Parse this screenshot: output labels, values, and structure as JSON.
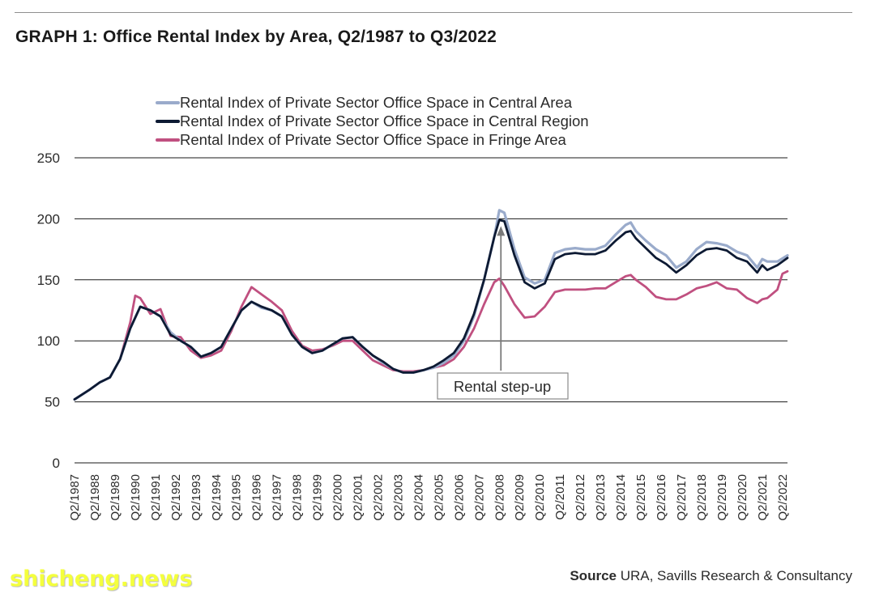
{
  "header": {
    "title": "GRAPH 1: Office Rental Index by Area, Q2/1987 to Q3/2022"
  },
  "footer": {
    "source_label": "Source",
    "source_text": "URA, Savills Research & Consultancy",
    "watermark": "shicheng.news"
  },
  "chart_data": {
    "type": "line",
    "ylim": [
      0,
      250
    ],
    "yticks": [
      0,
      50,
      100,
      150,
      200,
      250
    ],
    "xticks": [
      "Q2/1987",
      "Q2/1988",
      "Q2/1989",
      "Q2/1990",
      "Q2/1991",
      "Q2/1992",
      "Q2/1993",
      "Q2/1994",
      "Q2/1995",
      "Q2/1996",
      "Q2/1997",
      "Q2/1998",
      "Q2/1999",
      "Q2/2000",
      "Q2/2001",
      "Q2/2002",
      "Q2/2003",
      "Q2/2004",
      "Q2/2005",
      "Q2/2006",
      "Q2/2007",
      "Q2/2008",
      "Q2/2009",
      "Q2/2010",
      "Q2/2011",
      "Q2/2012",
      "Q2/2013",
      "Q2/2014",
      "Q2/2015",
      "Q2/2016",
      "Q2/2017",
      "Q2/2018",
      "Q2/2019",
      "Q2/2020",
      "Q2/2021",
      "Q2/2022"
    ],
    "x_range": [
      "Q2/1987",
      "Q3/2022"
    ],
    "grid": "horizontal",
    "legend_position": "top",
    "annotation": {
      "text": "Rental step-up",
      "x": "Q2/2008",
      "y": 200
    },
    "series": [
      {
        "name": "Rental Index of Private Sector Office Space in Central Area",
        "color": "#9aabcb",
        "points": [
          [
            1987.25,
            52
          ],
          [
            1988.0,
            60
          ],
          [
            1988.5,
            66
          ],
          [
            1989.0,
            70
          ],
          [
            1989.5,
            85
          ],
          [
            1990.0,
            110
          ],
          [
            1990.5,
            128
          ],
          [
            1991.0,
            125
          ],
          [
            1991.5,
            120
          ],
          [
            1992.0,
            107
          ],
          [
            1992.5,
            100
          ],
          [
            1993.0,
            95
          ],
          [
            1993.5,
            87
          ],
          [
            1994.0,
            90
          ],
          [
            1994.5,
            95
          ],
          [
            1995.0,
            110
          ],
          [
            1995.5,
            125
          ],
          [
            1996.0,
            132
          ],
          [
            1996.5,
            127
          ],
          [
            1997.0,
            125
          ],
          [
            1997.5,
            120
          ],
          [
            1998.0,
            105
          ],
          [
            1998.5,
            95
          ],
          [
            1999.0,
            90
          ],
          [
            1999.5,
            92
          ],
          [
            2000.0,
            97
          ],
          [
            2000.5,
            102
          ],
          [
            2001.0,
            103
          ],
          [
            2001.5,
            95
          ],
          [
            2002.0,
            88
          ],
          [
            2002.5,
            82
          ],
          [
            2003.0,
            77
          ],
          [
            2003.5,
            74
          ],
          [
            2004.0,
            74
          ],
          [
            2004.5,
            76
          ],
          [
            2005.0,
            78
          ],
          [
            2005.5,
            82
          ],
          [
            2006.0,
            88
          ],
          [
            2006.5,
            100
          ],
          [
            2007.0,
            120
          ],
          [
            2007.5,
            150
          ],
          [
            2008.0,
            185
          ],
          [
            2008.25,
            207
          ],
          [
            2008.5,
            205
          ],
          [
            2009.0,
            175
          ],
          [
            2009.5,
            152
          ],
          [
            2010.0,
            147
          ],
          [
            2010.5,
            150
          ],
          [
            2011.0,
            172
          ],
          [
            2011.5,
            175
          ],
          [
            2012.0,
            176
          ],
          [
            2012.5,
            175
          ],
          [
            2013.0,
            175
          ],
          [
            2013.5,
            178
          ],
          [
            2014.0,
            187
          ],
          [
            2014.5,
            195
          ],
          [
            2014.75,
            197
          ],
          [
            2015.0,
            190
          ],
          [
            2015.5,
            182
          ],
          [
            2016.0,
            175
          ],
          [
            2016.5,
            170
          ],
          [
            2017.0,
            160
          ],
          [
            2017.5,
            165
          ],
          [
            2018.0,
            175
          ],
          [
            2018.5,
            181
          ],
          [
            2019.0,
            180
          ],
          [
            2019.5,
            178
          ],
          [
            2020.0,
            173
          ],
          [
            2020.5,
            170
          ],
          [
            2021.0,
            160
          ],
          [
            2021.25,
            167
          ],
          [
            2021.5,
            165
          ],
          [
            2022.0,
            165
          ],
          [
            2022.5,
            170
          ]
        ]
      },
      {
        "name": "Rental Index of Private Sector Office Space in Central Region",
        "color": "#0d1a33",
        "points": [
          [
            1987.25,
            52
          ],
          [
            1988.0,
            60
          ],
          [
            1988.5,
            66
          ],
          [
            1989.0,
            70
          ],
          [
            1989.5,
            85
          ],
          [
            1990.0,
            110
          ],
          [
            1990.5,
            128
          ],
          [
            1991.0,
            125
          ],
          [
            1991.5,
            120
          ],
          [
            1992.0,
            105
          ],
          [
            1992.5,
            100
          ],
          [
            1993.0,
            95
          ],
          [
            1993.5,
            87
          ],
          [
            1994.0,
            90
          ],
          [
            1994.5,
            95
          ],
          [
            1995.0,
            110
          ],
          [
            1995.5,
            125
          ],
          [
            1996.0,
            132
          ],
          [
            1996.5,
            128
          ],
          [
            1997.0,
            125
          ],
          [
            1997.5,
            120
          ],
          [
            1998.0,
            105
          ],
          [
            1998.5,
            95
          ],
          [
            1999.0,
            90
          ],
          [
            1999.5,
            92
          ],
          [
            2000.0,
            97
          ],
          [
            2000.5,
            102
          ],
          [
            2001.0,
            103
          ],
          [
            2001.5,
            95
          ],
          [
            2002.0,
            88
          ],
          [
            2002.5,
            83
          ],
          [
            2003.0,
            77
          ],
          [
            2003.5,
            74
          ],
          [
            2004.0,
            74
          ],
          [
            2004.5,
            76
          ],
          [
            2005.0,
            79
          ],
          [
            2005.5,
            84
          ],
          [
            2006.0,
            90
          ],
          [
            2006.5,
            102
          ],
          [
            2007.0,
            122
          ],
          [
            2007.5,
            150
          ],
          [
            2008.0,
            185
          ],
          [
            2008.25,
            199
          ],
          [
            2008.5,
            198
          ],
          [
            2009.0,
            170
          ],
          [
            2009.5,
            148
          ],
          [
            2010.0,
            143
          ],
          [
            2010.5,
            147
          ],
          [
            2011.0,
            167
          ],
          [
            2011.5,
            171
          ],
          [
            2012.0,
            172
          ],
          [
            2012.5,
            171
          ],
          [
            2013.0,
            171
          ],
          [
            2013.5,
            174
          ],
          [
            2014.0,
            182
          ],
          [
            2014.5,
            189
          ],
          [
            2014.75,
            190
          ],
          [
            2015.0,
            184
          ],
          [
            2015.5,
            176
          ],
          [
            2016.0,
            168
          ],
          [
            2016.5,
            163
          ],
          [
            2017.0,
            156
          ],
          [
            2017.5,
            162
          ],
          [
            2018.0,
            170
          ],
          [
            2018.5,
            175
          ],
          [
            2019.0,
            176
          ],
          [
            2019.5,
            174
          ],
          [
            2020.0,
            168
          ],
          [
            2020.5,
            165
          ],
          [
            2021.0,
            156
          ],
          [
            2021.25,
            162
          ],
          [
            2021.5,
            158
          ],
          [
            2022.0,
            162
          ],
          [
            2022.5,
            168
          ]
        ]
      },
      {
        "name": "Rental Index of Private Sector Office Space in Fringe Area",
        "color": "#c05080",
        "points": [
          [
            1987.25,
            52
          ],
          [
            1988.0,
            60
          ],
          [
            1988.5,
            66
          ],
          [
            1989.0,
            70
          ],
          [
            1989.5,
            85
          ],
          [
            1990.0,
            115
          ],
          [
            1990.25,
            137
          ],
          [
            1990.5,
            135
          ],
          [
            1991.0,
            122
          ],
          [
            1991.5,
            126
          ],
          [
            1992.0,
            104
          ],
          [
            1992.5,
            103
          ],
          [
            1993.0,
            92
          ],
          [
            1993.5,
            86
          ],
          [
            1994.0,
            88
          ],
          [
            1994.5,
            92
          ],
          [
            1995.0,
            108
          ],
          [
            1995.5,
            128
          ],
          [
            1996.0,
            144
          ],
          [
            1996.5,
            138
          ],
          [
            1997.0,
            132
          ],
          [
            1997.5,
            125
          ],
          [
            1998.0,
            108
          ],
          [
            1998.5,
            96
          ],
          [
            1999.0,
            92
          ],
          [
            1999.5,
            93
          ],
          [
            2000.0,
            96
          ],
          [
            2000.5,
            100
          ],
          [
            2001.0,
            100
          ],
          [
            2001.5,
            92
          ],
          [
            2002.0,
            84
          ],
          [
            2002.5,
            80
          ],
          [
            2003.0,
            76
          ],
          [
            2003.5,
            75
          ],
          [
            2004.0,
            75
          ],
          [
            2004.5,
            76
          ],
          [
            2005.0,
            78
          ],
          [
            2005.5,
            80
          ],
          [
            2006.0,
            85
          ],
          [
            2006.5,
            95
          ],
          [
            2007.0,
            110
          ],
          [
            2007.5,
            130
          ],
          [
            2008.0,
            148
          ],
          [
            2008.25,
            151
          ],
          [
            2008.5,
            145
          ],
          [
            2009.0,
            130
          ],
          [
            2009.5,
            119
          ],
          [
            2010.0,
            120
          ],
          [
            2010.5,
            128
          ],
          [
            2011.0,
            140
          ],
          [
            2011.5,
            142
          ],
          [
            2012.0,
            142
          ],
          [
            2012.5,
            142
          ],
          [
            2013.0,
            143
          ],
          [
            2013.5,
            143
          ],
          [
            2014.0,
            148
          ],
          [
            2014.5,
            153
          ],
          [
            2014.75,
            154
          ],
          [
            2015.0,
            150
          ],
          [
            2015.5,
            144
          ],
          [
            2016.0,
            136
          ],
          [
            2016.5,
            134
          ],
          [
            2017.0,
            134
          ],
          [
            2017.5,
            138
          ],
          [
            2018.0,
            143
          ],
          [
            2018.5,
            145
          ],
          [
            2019.0,
            148
          ],
          [
            2019.5,
            143
          ],
          [
            2020.0,
            142
          ],
          [
            2020.5,
            135
          ],
          [
            2021.0,
            131
          ],
          [
            2021.25,
            134
          ],
          [
            2021.5,
            135
          ],
          [
            2022.0,
            142
          ],
          [
            2022.25,
            155
          ],
          [
            2022.5,
            157
          ]
        ]
      }
    ]
  }
}
